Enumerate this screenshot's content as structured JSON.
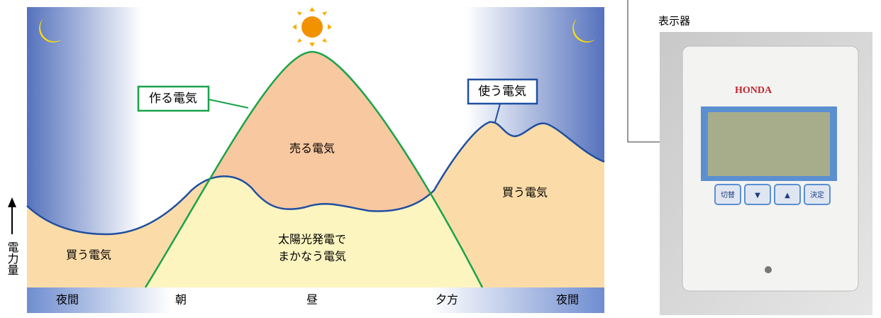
{
  "diagram": {
    "labels": {
      "produce": "作る電気",
      "use": "使う電気",
      "sell": "売る電気",
      "solar_line1": "太陽光発電で",
      "solar_line2": "まかなう電気",
      "buy_right": "買う電気",
      "buy_left": "買う電気"
    },
    "time_axis": [
      "夜間",
      "朝",
      "昼",
      "夕方",
      "夜間"
    ],
    "y_axis_label": "電力量"
  },
  "photo": {
    "caption": "表示器",
    "brand": "HONDA",
    "buttons": [
      "切替",
      "▼",
      "▲",
      "決定"
    ]
  }
}
